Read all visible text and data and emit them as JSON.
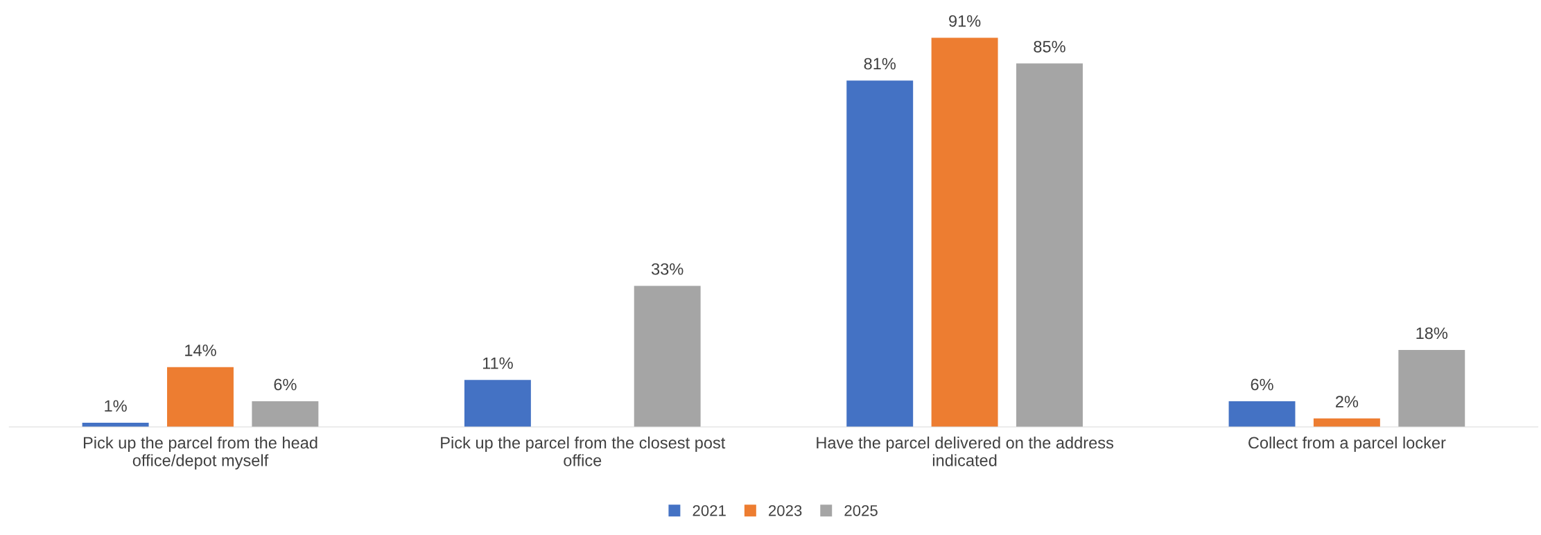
{
  "chart_data": {
    "type": "bar",
    "categories": [
      "Pick up the parcel from the head\noffice/depot myself",
      "Pick up the parcel from the closest post\noffice",
      "Have the parcel delivered on the address\nindicated",
      "Collect from a parcel locker"
    ],
    "series": [
      {
        "name": "2021",
        "color": "#4472c4",
        "values": [
          1,
          11,
          81,
          6
        ],
        "value_labels": [
          "1%",
          "11%",
          "81%",
          "6%"
        ]
      },
      {
        "name": "2023",
        "color": "#ed7d31",
        "values": [
          14,
          null,
          91,
          2
        ],
        "value_labels": [
          "14%",
          null,
          "91%",
          "2%"
        ]
      },
      {
        "name": "2025",
        "color": "#a5a5a5",
        "values": [
          6,
          33,
          85,
          18
        ],
        "value_labels": [
          "6%",
          "33%",
          "85%",
          "18%"
        ]
      }
    ],
    "grid": false,
    "legend": "bottom",
    "tick_labels": "x"
  }
}
